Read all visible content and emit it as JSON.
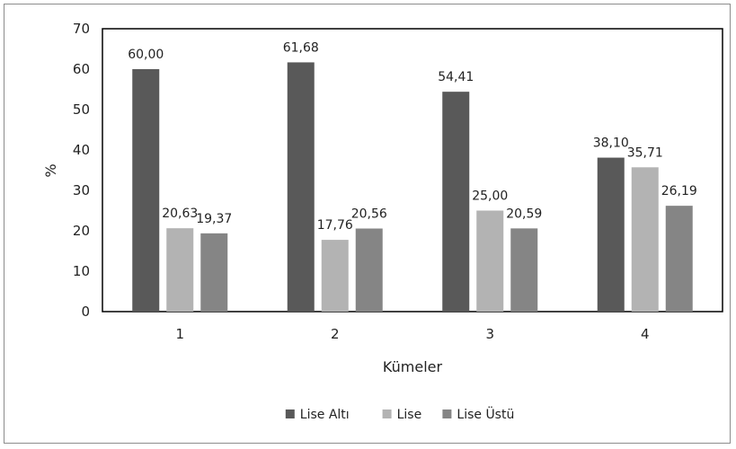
{
  "chart_data": {
    "type": "bar",
    "categories": [
      "1",
      "2",
      "3",
      "4"
    ],
    "series": [
      {
        "name": "Lise Altı",
        "color": "#595959",
        "values": [
          60.0,
          61.68,
          54.41,
          38.1
        ],
        "labels": [
          "60,00",
          "61,68",
          "54,41",
          "38,10"
        ]
      },
      {
        "name": "Lise",
        "color": "#b3b3b3",
        "values": [
          20.63,
          17.76,
          25.0,
          35.71
        ],
        "labels": [
          "20,63",
          "17,76",
          "25,00",
          "35,71"
        ]
      },
      {
        "name": "Lise Üstü",
        "color": "#858585",
        "values": [
          19.37,
          20.56,
          20.59,
          26.19
        ],
        "labels": [
          "19,37",
          "20,56",
          "20,59",
          "26,19"
        ]
      }
    ],
    "xlabel": "Kümeler",
    "ylabel": "%",
    "ylim": [
      0,
      70
    ],
    "yticks": [
      "0",
      "10",
      "20",
      "30",
      "40",
      "50",
      "60",
      "70"
    ],
    "grid": false,
    "legend_position": "bottom"
  }
}
